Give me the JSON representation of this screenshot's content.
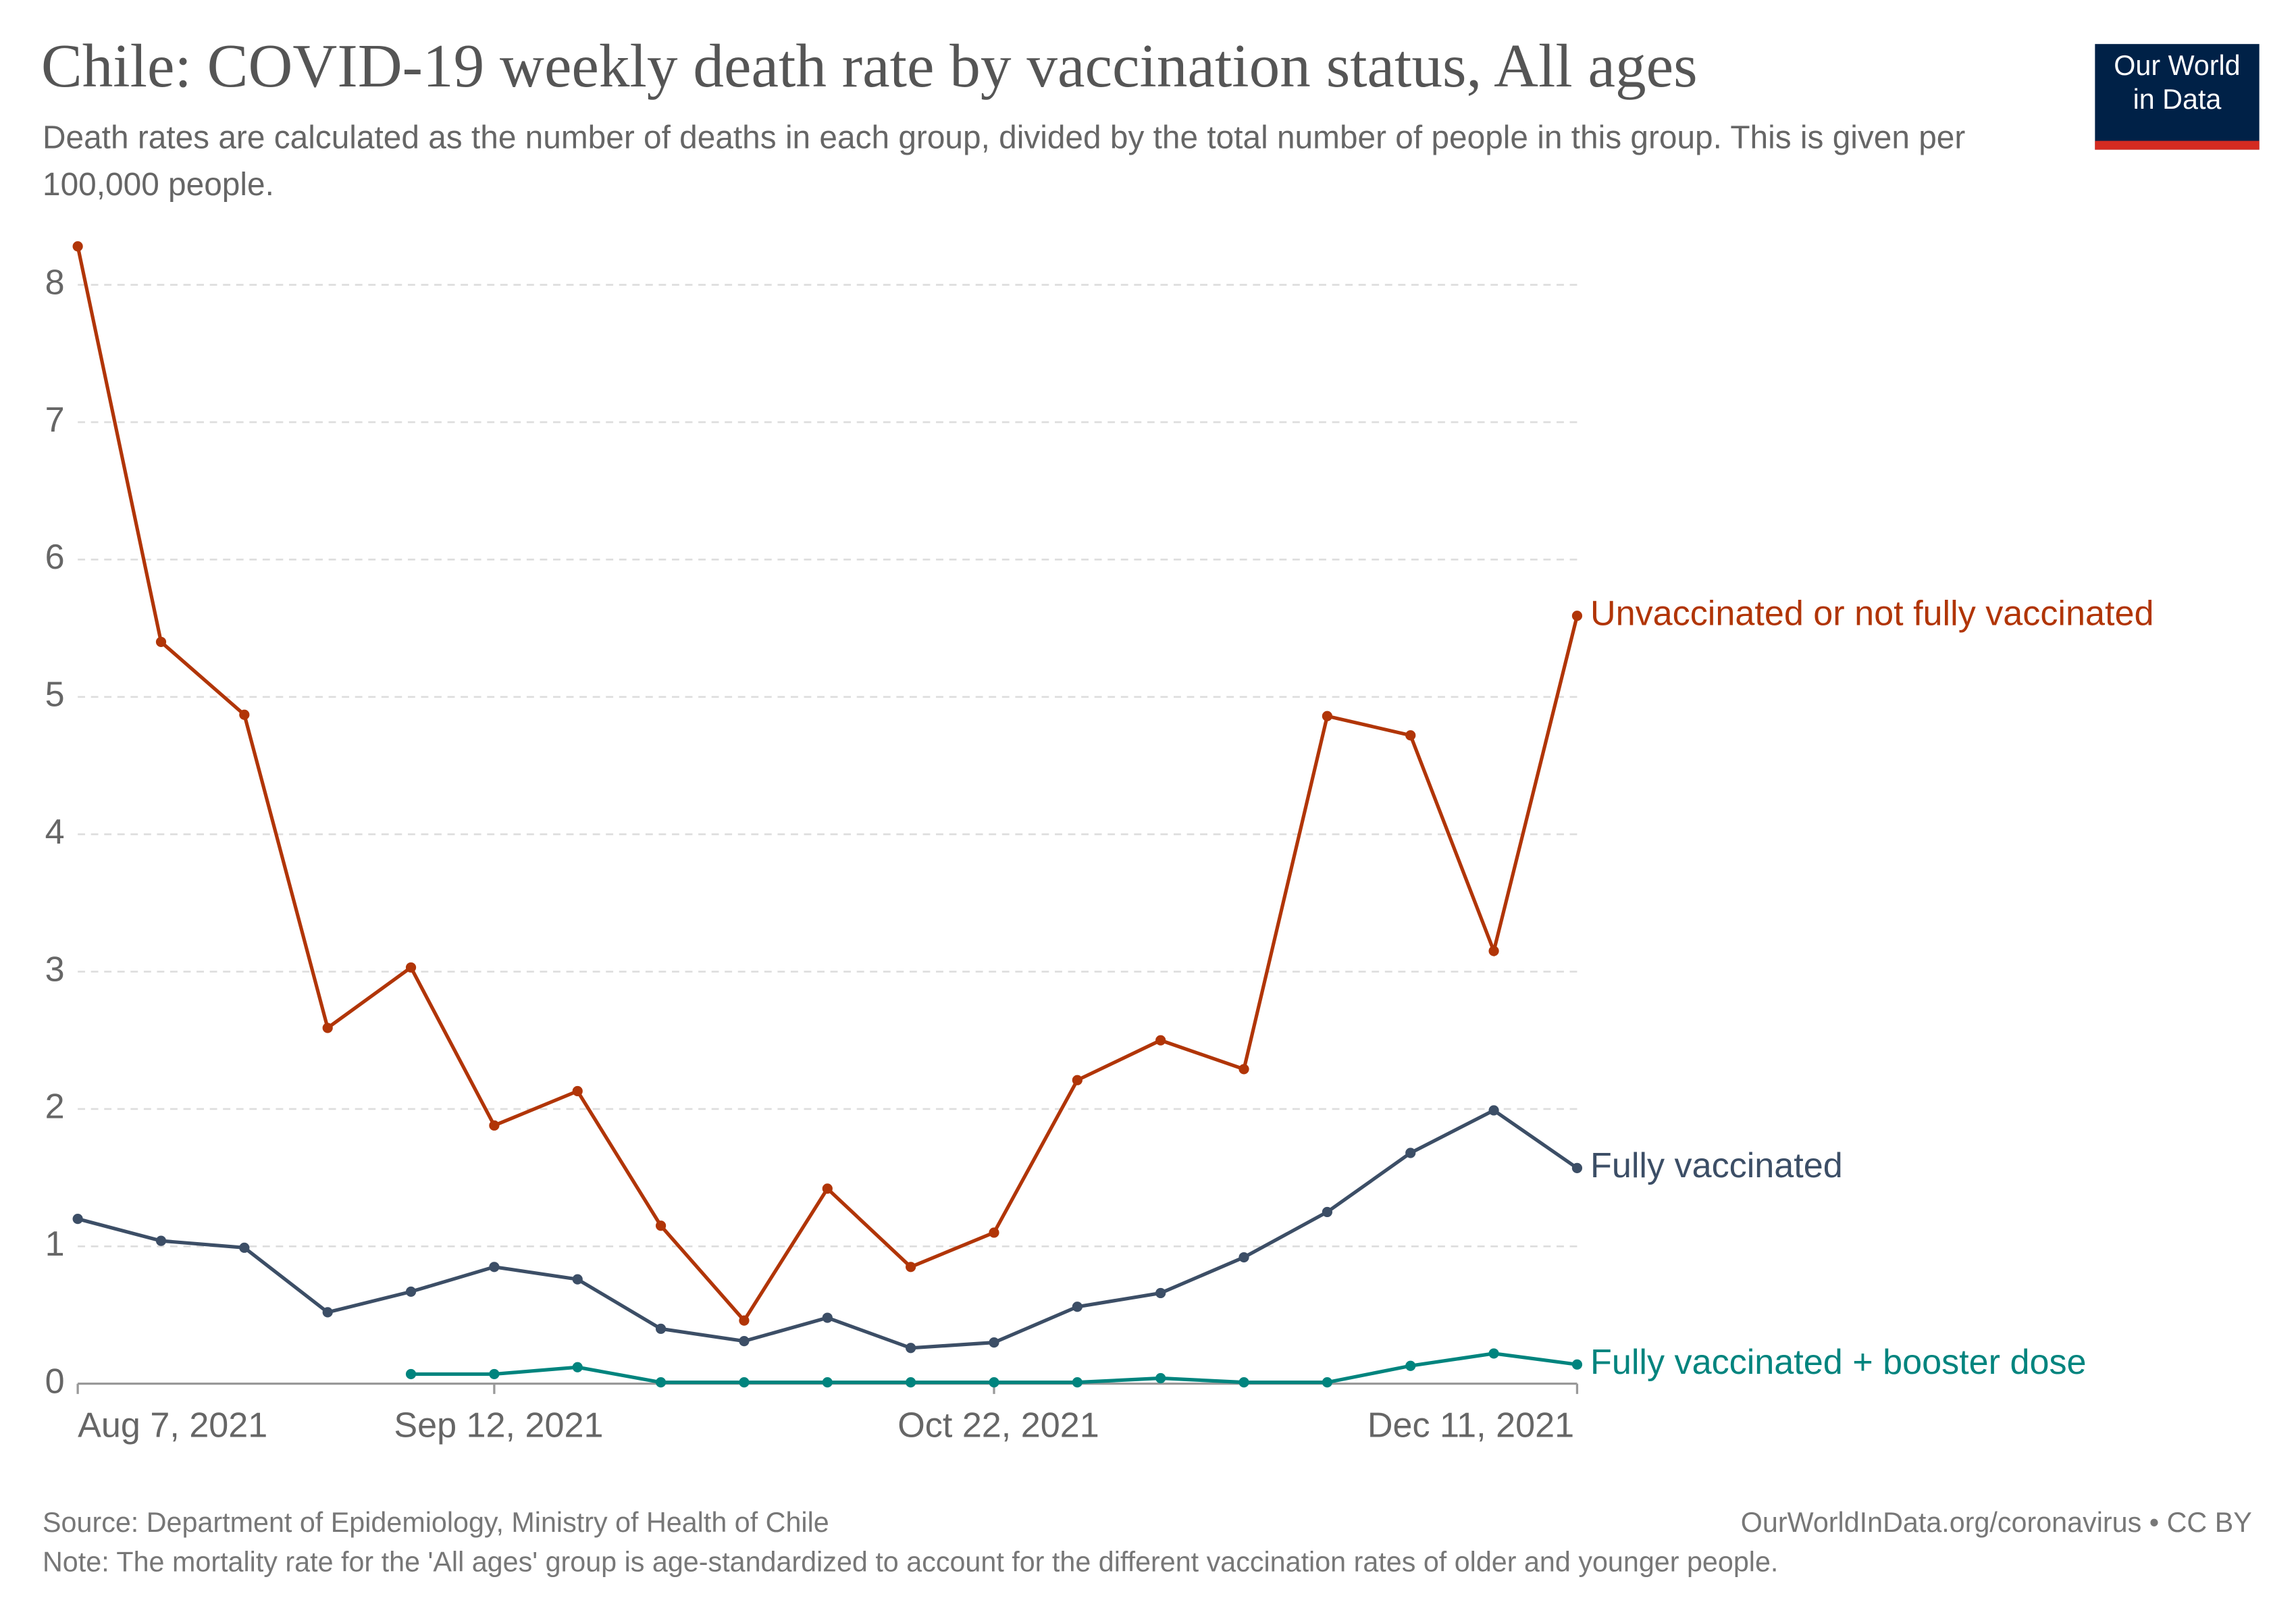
{
  "chart_data": {
    "type": "line",
    "title": "Chile: COVID-19 weekly death rate by vaccination status, All ages",
    "subtitle": "Death rates are calculated as the number of deaths in each group, divided by the total number of people in this group. This is given per 100,000 people.",
    "logo": [
      "Our World",
      "in Data"
    ],
    "source": "Source: Department of Epidemiology, Ministry of Health of Chile",
    "credit": "OurWorldInData.org/coronavirus • CC BY",
    "note": "Note: The mortality rate for the 'All ages' group is age-standardized to account for the different vaccination rates of older and younger people.",
    "categories": [
      "Aug 7, 2021",
      null,
      null,
      null,
      null,
      "Sep 12, 2021",
      null,
      null,
      null,
      null,
      null,
      "Oct 22, 2021",
      null,
      null,
      null,
      null,
      null,
      null,
      "Dec 11, 2021"
    ],
    "ylim": [
      0,
      8.3
    ],
    "yticks": [
      0,
      1,
      2,
      3,
      4,
      5,
      6,
      7,
      8
    ],
    "grid": true,
    "series": [
      {
        "name": "Unvaccinated or not fully vaccinated",
        "color": "#b13507",
        "values": [
          8.28,
          5.4,
          4.87,
          2.59,
          3.03,
          1.88,
          2.13,
          1.15,
          0.46,
          1.42,
          0.85,
          1.1,
          2.21,
          2.5,
          2.29,
          4.86,
          4.72,
          3.15,
          5.59
        ]
      },
      {
        "name": "Fully vaccinated",
        "color": "#3c4e66",
        "values": [
          1.2,
          1.04,
          0.99,
          0.52,
          0.67,
          0.85,
          0.76,
          0.4,
          0.31,
          0.48,
          0.26,
          0.3,
          0.56,
          0.66,
          0.92,
          1.25,
          1.68,
          1.99,
          1.57
        ]
      },
      {
        "name": "Fully vaccinated + booster dose",
        "color": "#00847e",
        "values": [
          null,
          null,
          null,
          null,
          0.07,
          0.07,
          0.12,
          0.01,
          0.01,
          0.01,
          0.01,
          0.01,
          0.01,
          0.04,
          0.01,
          0.01,
          0.13,
          0.22,
          0.14
        ]
      }
    ]
  }
}
